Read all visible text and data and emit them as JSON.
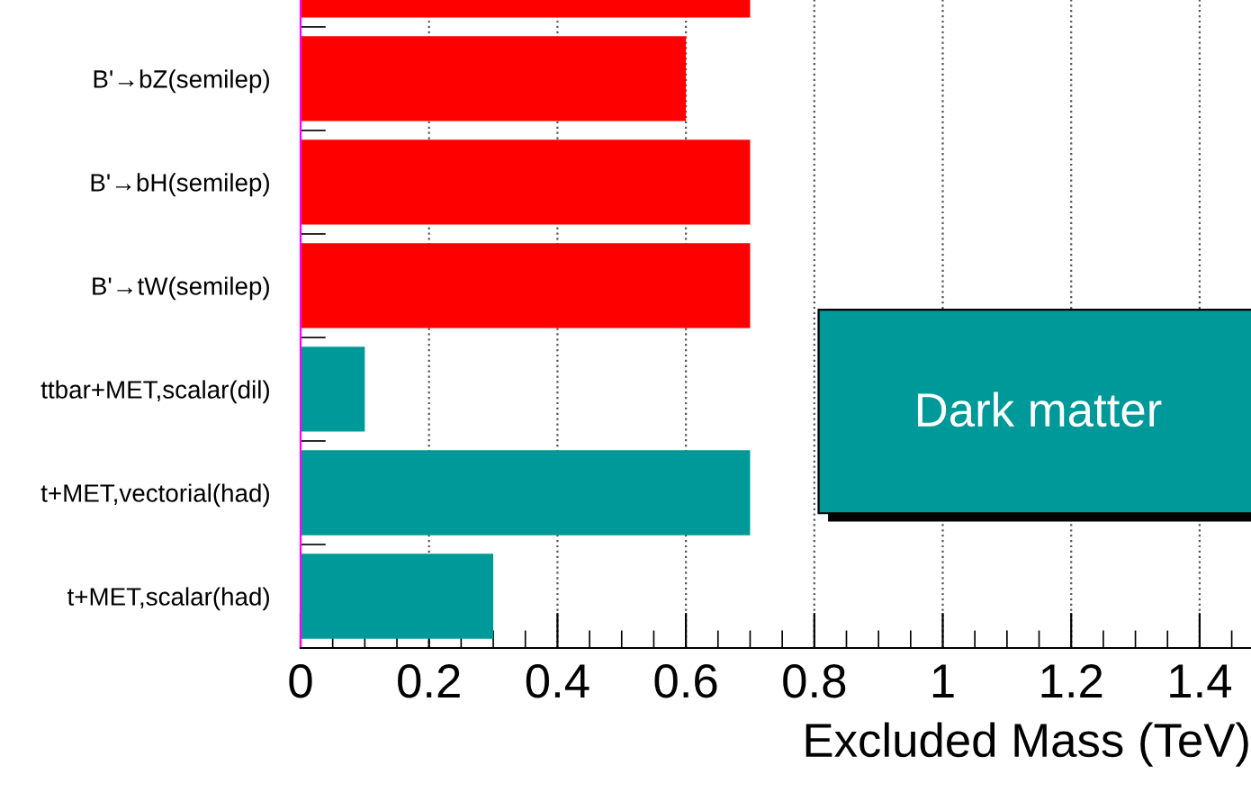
{
  "chart_data": {
    "type": "bar",
    "orientation": "horizontal",
    "categories": [
      null,
      "B'→bZ(semilep)",
      "B'→bH(semilep)",
      "B'→tW(semilep)",
      "ttbar+MET,scalar(dil)",
      "t+MET,vectorial(had)",
      "t+MET,scalar(had)"
    ],
    "values": [
      0.7,
      0.6,
      0.7,
      0.7,
      0.1,
      0.7,
      0.3
    ],
    "colors": [
      "#ff0000",
      "#ff0000",
      "#ff0000",
      "#ff0000",
      "#009999",
      "#009999",
      "#009999"
    ],
    "xlabel": "Excluded Mass (TeV)",
    "xlim": [
      0,
      1.48
    ],
    "xticks": [
      0,
      0.2,
      0.4,
      0.6,
      0.8,
      1,
      1.2,
      1.4
    ],
    "grid": "x",
    "annotations": [
      "Dark matter"
    ]
  }
}
